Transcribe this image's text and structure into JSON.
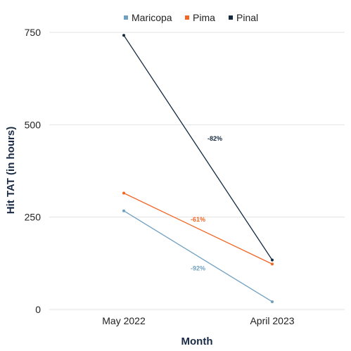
{
  "chart_data": {
    "type": "line",
    "title": "",
    "xlabel": "Month",
    "ylabel": "Hit TAT (in hours)",
    "categories": [
      "May 2022",
      "April 2023"
    ],
    "ylim": [
      0,
      750
    ],
    "yticks": [
      0,
      250,
      500,
      750
    ],
    "grid": true,
    "legend": "top-center",
    "series": [
      {
        "name": "Maricopa",
        "color": "#6fa0bf",
        "values": [
          267,
          21
        ],
        "change_label": "-92%"
      },
      {
        "name": "Pima",
        "color": "#f26522",
        "values": [
          315,
          123
        ],
        "change_label": "-61%"
      },
      {
        "name": "Pinal",
        "color": "#14293f",
        "values": [
          742,
          134
        ],
        "change_label": "-82%"
      }
    ]
  }
}
